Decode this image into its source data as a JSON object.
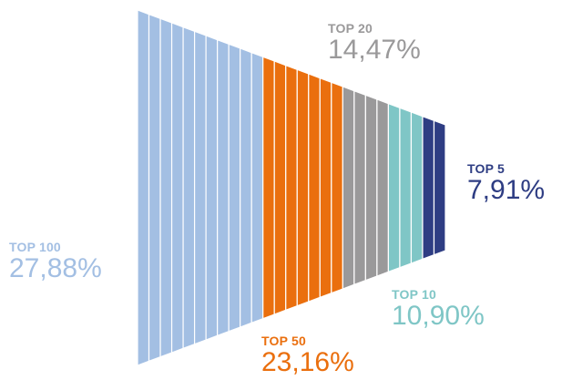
{
  "chart_data": {
    "type": "funnel",
    "series": [
      {
        "name": "TOP 100",
        "label": "27,88%",
        "value": 27.88,
        "color": "#a3bfe3",
        "bars": 11
      },
      {
        "name": "TOP 50",
        "label": "23,16%",
        "value": 23.16,
        "color": "#ea6f0e",
        "bars": 7
      },
      {
        "name": "TOP 20",
        "label": "14,47%",
        "value": 14.47,
        "color": "#9a999a",
        "bars": 4
      },
      {
        "name": "TOP 10",
        "label": "10,90%",
        "value": 10.9,
        "color": "#7fc6c6",
        "bars": 3
      },
      {
        "name": "TOP 5",
        "label": "7,91%",
        "value": 7.91,
        "color": "#2e3d83",
        "bars": 2
      }
    ]
  }
}
